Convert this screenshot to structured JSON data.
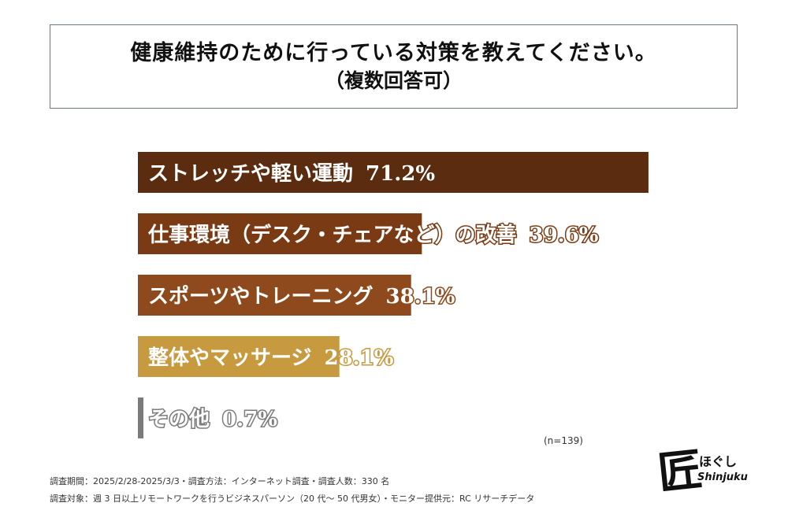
{
  "title": {
    "line1": "健康維持のために行っている対策を教えてください。",
    "line2": "（複数回答可）"
  },
  "chart_data": {
    "type": "bar",
    "orientation": "horizontal",
    "title": "健康維持のために行っている対策を教えてください。（複数回答可）",
    "xlim": [
      0,
      100
    ],
    "categories": [
      "ストレッチや軽い運動",
      "仕事環境（デスク・チェアなど）の改善",
      "スポーツやトレーニング",
      "整体やマッサージ",
      "その他"
    ],
    "values": [
      71.2,
      39.6,
      38.1,
      28.1,
      0.7
    ],
    "value_labels": [
      "71.2%",
      "39.6%",
      "38.1%",
      "28.1%",
      "0.7%"
    ],
    "bar_colors": [
      "#5b2c0f",
      "#7a3a14",
      "#8e4a1c",
      "#c89a3f",
      "#7b7b7b"
    ]
  },
  "sample": "(n=139)",
  "footnotes": {
    "line1": "調査期間：2025/2/28-2025/3/3・調査方法：インターネット調査・調査人数：330 名",
    "line2": "調査対象：週 3 日以上リモートワークを行うビジネスパーソン（20 代～ 50 代男女）・モニター提供元：RC リサーチデータ"
  },
  "logo": {
    "kanji": "匠",
    "kana": "ほぐし",
    "english": "Shinjuku"
  }
}
